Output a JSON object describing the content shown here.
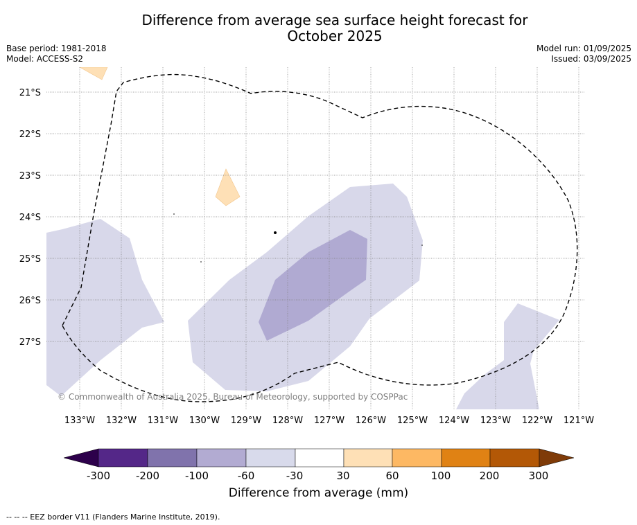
{
  "header": {
    "title_line1": "Difference from average sea surface height forecast for",
    "title_line2": "October 2025",
    "base_period": "Base period: 1981-2018",
    "model": "Model: ACCESS-S2",
    "model_run": "Model run: 01/09/2025",
    "issued": "Issued: 03/09/2025"
  },
  "map": {
    "lat_labels": [
      "21°S",
      "22°S",
      "23°S",
      "24°S",
      "25°S",
      "26°S",
      "27°S"
    ],
    "lon_labels": [
      "133°W",
      "132°W",
      "131°W",
      "130°W",
      "129°W",
      "128°W",
      "127°W",
      "126°W",
      "125°W",
      "124°W",
      "123°W",
      "122°W",
      "121°W"
    ],
    "copyright": "© Commonwealth of Australia 2025, Bureau of Meteorology, supported by COSPPac",
    "colors": {
      "light_purple": "#d8d8ea",
      "mid_purple": "#b0aad2",
      "light_orange": "#fee0b6",
      "eez_border": "#000000"
    }
  },
  "colorbar": {
    "tick_labels": [
      "-300",
      "-200",
      "-100",
      "-60",
      "-30",
      "30",
      "60",
      "100",
      "200",
      "300"
    ],
    "colors": [
      "#2d004b",
      "#542788",
      "#8073ac",
      "#b2abd2",
      "#d8daeb",
      "#ffffff",
      "#fee0b6",
      "#fdb863",
      "#e08214",
      "#b35806",
      "#7f3b08"
    ],
    "title": "Difference from average (mm)"
  },
  "footnote": "-- -- -- EEZ border V11 (Flanders Marine Institute, 2019)."
}
